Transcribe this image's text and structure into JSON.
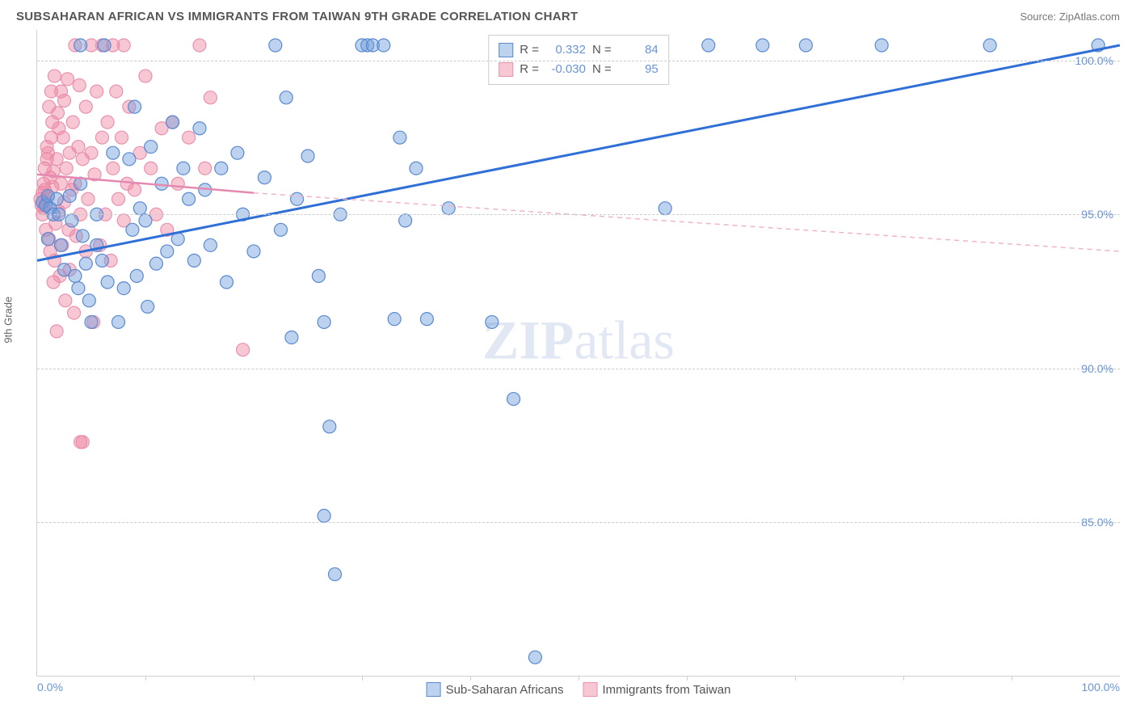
{
  "header": {
    "title": "SUBSAHARAN AFRICAN VS IMMIGRANTS FROM TAIWAN 9TH GRADE CORRELATION CHART",
    "source": "Source: ZipAtlas.com"
  },
  "axes": {
    "ylabel": "9th Grade",
    "y_ticks": [
      85.0,
      90.0,
      95.0,
      100.0
    ],
    "y_tick_labels": [
      "85.0%",
      "90.0%",
      "95.0%",
      "100.0%"
    ],
    "ylim": [
      80.0,
      101.0
    ],
    "x_tick_labels": {
      "min": "0.0%",
      "max": "100.0%"
    },
    "xlim": [
      0,
      100
    ],
    "minor_tick_count": 9,
    "grid_color": "#cccccc",
    "border_color": "#d0d0d0",
    "axis_label_color": "#666666",
    "tick_label_color": "#6894d8",
    "tick_fontsize": 14,
    "label_fontsize": 13
  },
  "series": {
    "blue": {
      "label": "Sub-Saharan Africans",
      "fill": "rgba(108, 156, 220, 0.45)",
      "stroke": "#5a8acf",
      "marker_radius": 8,
      "R": "0.332",
      "N": "84",
      "trend": {
        "x1": 0,
        "y1": 93.5,
        "x2": 100,
        "y2": 100.5,
        "color": "#2f6fd6",
        "width": 3,
        "dash": "none"
      },
      "points": [
        [
          0.5,
          95.4
        ],
        [
          0.8,
          95.3
        ],
        [
          1.0,
          95.6
        ],
        [
          1.2,
          95.2
        ],
        [
          1.5,
          95.0
        ],
        [
          1.0,
          94.2
        ],
        [
          1.8,
          95.5
        ],
        [
          2.0,
          95.0
        ],
        [
          2.2,
          94.0
        ],
        [
          2.5,
          93.2
        ],
        [
          4.0,
          100.5
        ],
        [
          3.0,
          95.6
        ],
        [
          3.2,
          94.8
        ],
        [
          3.5,
          93.0
        ],
        [
          3.8,
          92.6
        ],
        [
          6.2,
          100.5
        ],
        [
          4.0,
          96.0
        ],
        [
          4.2,
          94.3
        ],
        [
          4.5,
          93.4
        ],
        [
          4.8,
          92.2
        ],
        [
          5.0,
          91.5
        ],
        [
          5.5,
          95.0
        ],
        [
          5.5,
          94.0
        ],
        [
          6.0,
          93.5
        ],
        [
          6.5,
          92.8
        ],
        [
          7.0,
          97.0
        ],
        [
          7.5,
          91.5
        ],
        [
          8.0,
          92.6
        ],
        [
          8.5,
          96.8
        ],
        [
          8.8,
          94.5
        ],
        [
          9.0,
          98.5
        ],
        [
          9.2,
          93.0
        ],
        [
          9.5,
          95.2
        ],
        [
          10.0,
          94.8
        ],
        [
          10.5,
          97.2
        ],
        [
          10.2,
          92.0
        ],
        [
          11.0,
          93.4
        ],
        [
          11.5,
          96.0
        ],
        [
          12.0,
          93.8
        ],
        [
          12.5,
          98.0
        ],
        [
          13.0,
          94.2
        ],
        [
          13.5,
          96.5
        ],
        [
          14.0,
          95.5
        ],
        [
          14.5,
          93.5
        ],
        [
          15.0,
          97.8
        ],
        [
          15.5,
          95.8
        ],
        [
          16.0,
          94.0
        ],
        [
          17.0,
          96.5
        ],
        [
          17.5,
          92.8
        ],
        [
          18.5,
          97.0
        ],
        [
          19.0,
          95.0
        ],
        [
          20.0,
          93.8
        ],
        [
          21.0,
          96.2
        ],
        [
          22.0,
          100.5
        ],
        [
          22.5,
          94.5
        ],
        [
          23.0,
          98.8
        ],
        [
          23.5,
          91.0
        ],
        [
          24.0,
          95.5
        ],
        [
          25.0,
          96.9
        ],
        [
          26.0,
          93.0
        ],
        [
          26.5,
          85.2
        ],
        [
          26.5,
          91.5
        ],
        [
          27.0,
          88.1
        ],
        [
          27.5,
          83.3
        ],
        [
          28.0,
          95.0
        ],
        [
          30.0,
          100.5
        ],
        [
          30.5,
          100.5
        ],
        [
          31.0,
          100.5
        ],
        [
          32.0,
          100.5
        ],
        [
          33.0,
          91.6
        ],
        [
          33.5,
          97.5
        ],
        [
          34.0,
          94.8
        ],
        [
          35.0,
          96.5
        ],
        [
          36.0,
          91.6
        ],
        [
          38.0,
          95.2
        ],
        [
          42.0,
          91.5
        ],
        [
          44.0,
          89.0
        ],
        [
          46.0,
          80.6
        ],
        [
          58.0,
          95.2
        ],
        [
          62.0,
          100.5
        ],
        [
          67.0,
          100.5
        ],
        [
          71.0,
          100.5
        ],
        [
          78.0,
          100.5
        ],
        [
          88.0,
          100.5
        ],
        [
          98.0,
          100.5
        ]
      ]
    },
    "pink": {
      "label": "Immigrants from Taiwan",
      "fill": "rgba(240, 130, 160, 0.45)",
      "stroke": "#e892b0",
      "marker_radius": 8,
      "R": "-0.030",
      "N": "95",
      "trend_solid": {
        "x1": 0,
        "y1": 96.3,
        "x2": 20,
        "y2": 95.7,
        "color": "#e48ab0",
        "width": 2.5
      },
      "trend_dash": {
        "x1": 20,
        "y1": 95.7,
        "x2": 100,
        "y2": 93.8,
        "color": "#f0b4c8",
        "width": 1.5,
        "dash": "6,5"
      },
      "points": [
        [
          0.3,
          95.5
        ],
        [
          0.4,
          95.3
        ],
        [
          0.5,
          95.7
        ],
        [
          0.5,
          95.0
        ],
        [
          0.6,
          96.0
        ],
        [
          0.6,
          95.2
        ],
        [
          0.7,
          95.8
        ],
        [
          0.7,
          96.5
        ],
        [
          0.8,
          94.5
        ],
        [
          0.8,
          95.4
        ],
        [
          0.9,
          96.8
        ],
        [
          0.9,
          97.2
        ],
        [
          1.0,
          95.6
        ],
        [
          1.0,
          97.0
        ],
        [
          1.1,
          98.5
        ],
        [
          1.1,
          94.2
        ],
        [
          1.2,
          96.2
        ],
        [
          1.2,
          93.8
        ],
        [
          1.3,
          97.5
        ],
        [
          1.3,
          99.0
        ],
        [
          1.4,
          95.9
        ],
        [
          1.4,
          98.0
        ],
        [
          1.5,
          92.8
        ],
        [
          1.5,
          96.4
        ],
        [
          1.6,
          93.5
        ],
        [
          1.6,
          99.5
        ],
        [
          1.7,
          94.7
        ],
        [
          1.8,
          96.8
        ],
        [
          1.8,
          91.2
        ],
        [
          1.9,
          98.3
        ],
        [
          2.0,
          95.1
        ],
        [
          2.0,
          97.8
        ],
        [
          2.1,
          93.0
        ],
        [
          2.2,
          99.0
        ],
        [
          2.2,
          96.0
        ],
        [
          2.3,
          94.0
        ],
        [
          2.4,
          97.5
        ],
        [
          2.5,
          95.4
        ],
        [
          2.5,
          98.7
        ],
        [
          2.6,
          92.2
        ],
        [
          2.7,
          96.5
        ],
        [
          2.8,
          99.4
        ],
        [
          2.9,
          94.5
        ],
        [
          3.0,
          97.0
        ],
        [
          3.0,
          93.2
        ],
        [
          3.2,
          95.8
        ],
        [
          3.3,
          98.0
        ],
        [
          3.4,
          91.8
        ],
        [
          3.5,
          100.5
        ],
        [
          3.5,
          96.0
        ],
        [
          3.6,
          94.3
        ],
        [
          3.8,
          97.2
        ],
        [
          3.9,
          99.2
        ],
        [
          4.0,
          95.0
        ],
        [
          4.0,
          87.6
        ],
        [
          4.2,
          87.6
        ],
        [
          4.2,
          96.8
        ],
        [
          4.5,
          93.8
        ],
        [
          4.5,
          98.5
        ],
        [
          4.7,
          95.5
        ],
        [
          5.0,
          100.5
        ],
        [
          5.0,
          97.0
        ],
        [
          5.2,
          91.5
        ],
        [
          5.3,
          96.3
        ],
        [
          5.5,
          99.0
        ],
        [
          5.8,
          94.0
        ],
        [
          6.0,
          97.5
        ],
        [
          6.0,
          100.5
        ],
        [
          6.3,
          95.0
        ],
        [
          6.5,
          98.0
        ],
        [
          6.8,
          93.5
        ],
        [
          7.0,
          96.5
        ],
        [
          7.0,
          100.5
        ],
        [
          7.3,
          99.0
        ],
        [
          7.5,
          95.5
        ],
        [
          7.8,
          97.5
        ],
        [
          8.0,
          94.8
        ],
        [
          8.0,
          100.5
        ],
        [
          8.3,
          96.0
        ],
        [
          8.5,
          98.5
        ],
        [
          9.0,
          95.8
        ],
        [
          9.5,
          97.0
        ],
        [
          10.0,
          99.5
        ],
        [
          10.5,
          96.5
        ],
        [
          11.0,
          95.0
        ],
        [
          11.5,
          97.8
        ],
        [
          12.0,
          94.5
        ],
        [
          12.5,
          98.0
        ],
        [
          13.0,
          96.0
        ],
        [
          14.0,
          97.5
        ],
        [
          15.0,
          100.5
        ],
        [
          15.5,
          96.5
        ],
        [
          16.0,
          98.8
        ],
        [
          19.0,
          90.6
        ],
        [
          51.5,
          100.5
        ]
      ]
    }
  },
  "legend_top": {
    "r_label": "R =",
    "n_label": "N ="
  },
  "watermark": {
    "part1": "ZIP",
    "part2": "atlas"
  },
  "style": {
    "background": "#ffffff",
    "title_color": "#555555",
    "title_fontsize": 15,
    "source_color": "#777777",
    "source_fontsize": 13,
    "legend_border": "#cccccc",
    "legend_fontsize": 15
  }
}
